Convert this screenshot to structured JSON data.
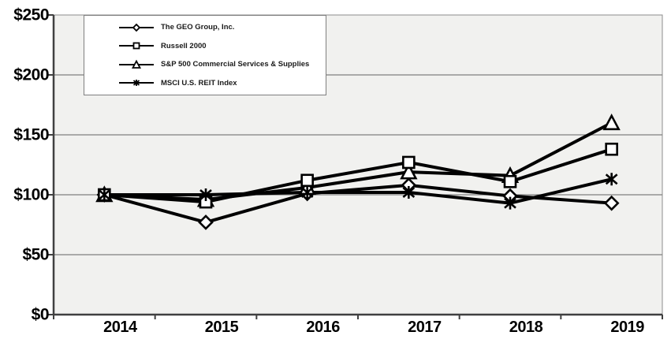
{
  "chart_data": {
    "type": "line",
    "title": "",
    "xlabel": "",
    "ylabel": "",
    "categories": [
      "2014",
      "2015",
      "2016",
      "2017",
      "2018",
      "2019"
    ],
    "y_tick_labels": [
      "$250",
      "$200",
      "$150",
      "$100",
      "$50",
      "$0"
    ],
    "y_ticks": [
      250,
      200,
      150,
      100,
      50,
      0
    ],
    "ylim": [
      0,
      250
    ],
    "grid": "horizontal-gridlines-on",
    "legend_position": "top-left-inside",
    "series": [
      {
        "name": "The GEO Group, Inc.",
        "marker": "diamond",
        "color": "#000000",
        "values": [
          100,
          77,
          101,
          108,
          99,
          93
        ]
      },
      {
        "name": "Russell 2000",
        "marker": "square",
        "color": "#000000",
        "values": [
          100,
          94,
          112,
          127,
          111,
          138
        ]
      },
      {
        "name": "S&P 500 Commercial Services & Supplies",
        "marker": "triangle",
        "color": "#000000",
        "values": [
          100,
          96,
          106,
          119,
          116,
          160
        ]
      },
      {
        "name": "MSCI U.S. REIT Index",
        "marker": "star",
        "color": "#000000",
        "values": [
          100,
          100,
          102,
          102,
          93,
          113
        ]
      }
    ],
    "colors": {
      "plot_bg": "#f1f1ef",
      "page_bg": "#ffffff",
      "grid": "#7f7f7f",
      "axis": "#404040",
      "frame": "#8c8c8c",
      "series_line": "#000000"
    }
  }
}
